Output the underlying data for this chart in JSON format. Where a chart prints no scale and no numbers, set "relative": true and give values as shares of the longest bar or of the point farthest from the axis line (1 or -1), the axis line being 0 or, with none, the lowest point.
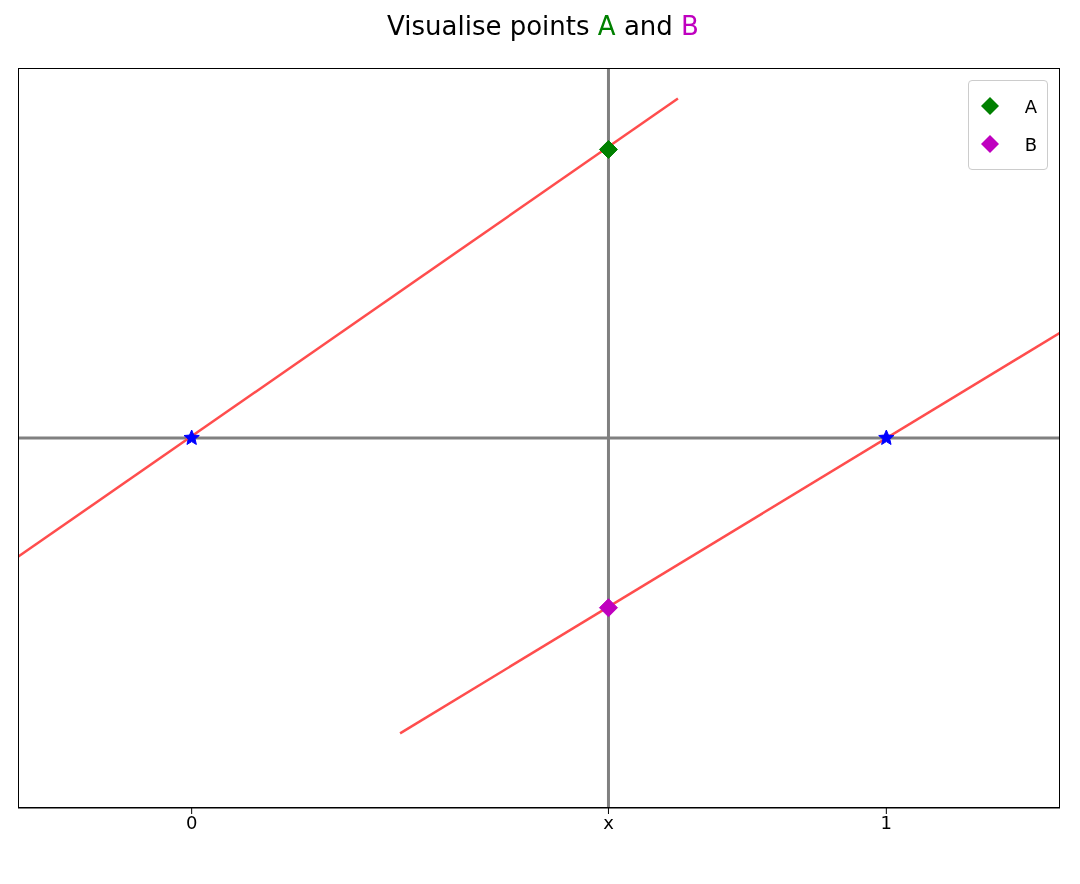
{
  "chart_data": {
    "type": "line",
    "title": "Visualise points A and B",
    "relative": true,
    "legend": "top right",
    "xlim": [
      -0.25,
      1.25
    ],
    "xticks": [
      0,
      {
        "value": 0.6,
        "label": "x"
      },
      1
    ],
    "ref_lines": [
      {
        "axis": "x",
        "value": 0.6,
        "color": "#808080"
      },
      {
        "axis": "y",
        "value": 0,
        "color": "#808080"
      }
    ],
    "series": [
      {
        "color": "#ff4d4d",
        "x": [
          -0.25,
          0.7
        ],
        "values": [
          -0.35,
          1
        ],
        "marker": "none"
      },
      {
        "color": "#ff4d4d",
        "x": [
          0.3,
          1.25
        ],
        "values": [
          -0.87,
          0.31
        ],
        "marker": "none"
      },
      {
        "type": "scatter",
        "name": "A",
        "color": "#008000",
        "x": [
          0.6
        ],
        "values": [
          0.85
        ],
        "marker": "diamond"
      },
      {
        "type": "scatter",
        "name": "B",
        "color": "#bf00bf",
        "x": [
          0.6
        ],
        "values": [
          -0.5
        ],
        "marker": "diamond"
      },
      {
        "type": "scatter",
        "color": "#0000ff",
        "x": [
          0,
          1
        ],
        "values": [
          0,
          0
        ],
        "marker": "star"
      }
    ]
  }
}
